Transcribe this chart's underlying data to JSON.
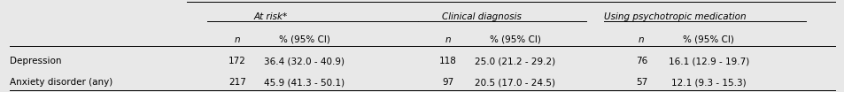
{
  "col_headers_top": [
    "At risk*",
    "Clinical diagnosis",
    "Using psychotropic medication"
  ],
  "col_headers_sub": [
    "n",
    "% (95% CI)",
    "n",
    "% (95% CI)",
    "n",
    "% (95% CI)"
  ],
  "rows": [
    [
      "Depression",
      "172",
      "36.4 (32.0 - 40.9)",
      "118",
      "25.0 (21.2 - 29.2)",
      "76",
      "16.1 (12.9 - 19.7)"
    ],
    [
      "Anxiety disorder (any)",
      "217",
      "45.9 (41.3 - 50.1)",
      "97",
      "20.5 (17.0 - 24.5)",
      "57",
      "12.1 (9.3 - 15.3)"
    ]
  ],
  "bg_color": "#e8e8e8",
  "text_color": "#000000",
  "font_size": 7.5,
  "header_font_size": 7.5
}
